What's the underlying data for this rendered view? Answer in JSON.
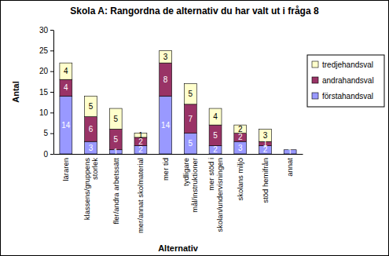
{
  "chart_data": {
    "type": "bar",
    "stacked": true,
    "data_labels": true,
    "grid": false,
    "legend": "right",
    "title": "Skola A: Rangordna de alternativ du har valt ut i fråga 8",
    "x_label": "Alternativ",
    "y_label": "Antal",
    "categories": [
      "läraren",
      "klassens/gruppens\nstorlek",
      "fler/andra arbetssätt",
      "mer/annat skolmaterial",
      "mer tid",
      "tydligare\nmål/instruktioner",
      "mer stöd i\nskolan/undervisningen",
      "skolans miljö",
      "stöd hemifrån",
      "annat"
    ],
    "series": [
      {
        "name": "förstahandsval",
        "color": "#9999ff",
        "values": [
          14,
          3,
          1,
          2,
          14,
          5,
          2,
          3,
          2,
          1
        ]
      },
      {
        "name": "andrahandsval",
        "color": "#993366",
        "values": [
          4,
          6,
          5,
          2,
          8,
          7,
          5,
          2,
          1,
          0
        ]
      },
      {
        "name": "tredjehandsval",
        "color": "#ffffcc",
        "values": [
          4,
          5,
          5,
          1,
          3,
          5,
          4,
          2,
          3,
          0
        ]
      }
    ],
    "ylim": [
      0,
      30
    ],
    "yticks": [
      0,
      5,
      10,
      15,
      20,
      25,
      30
    ]
  }
}
